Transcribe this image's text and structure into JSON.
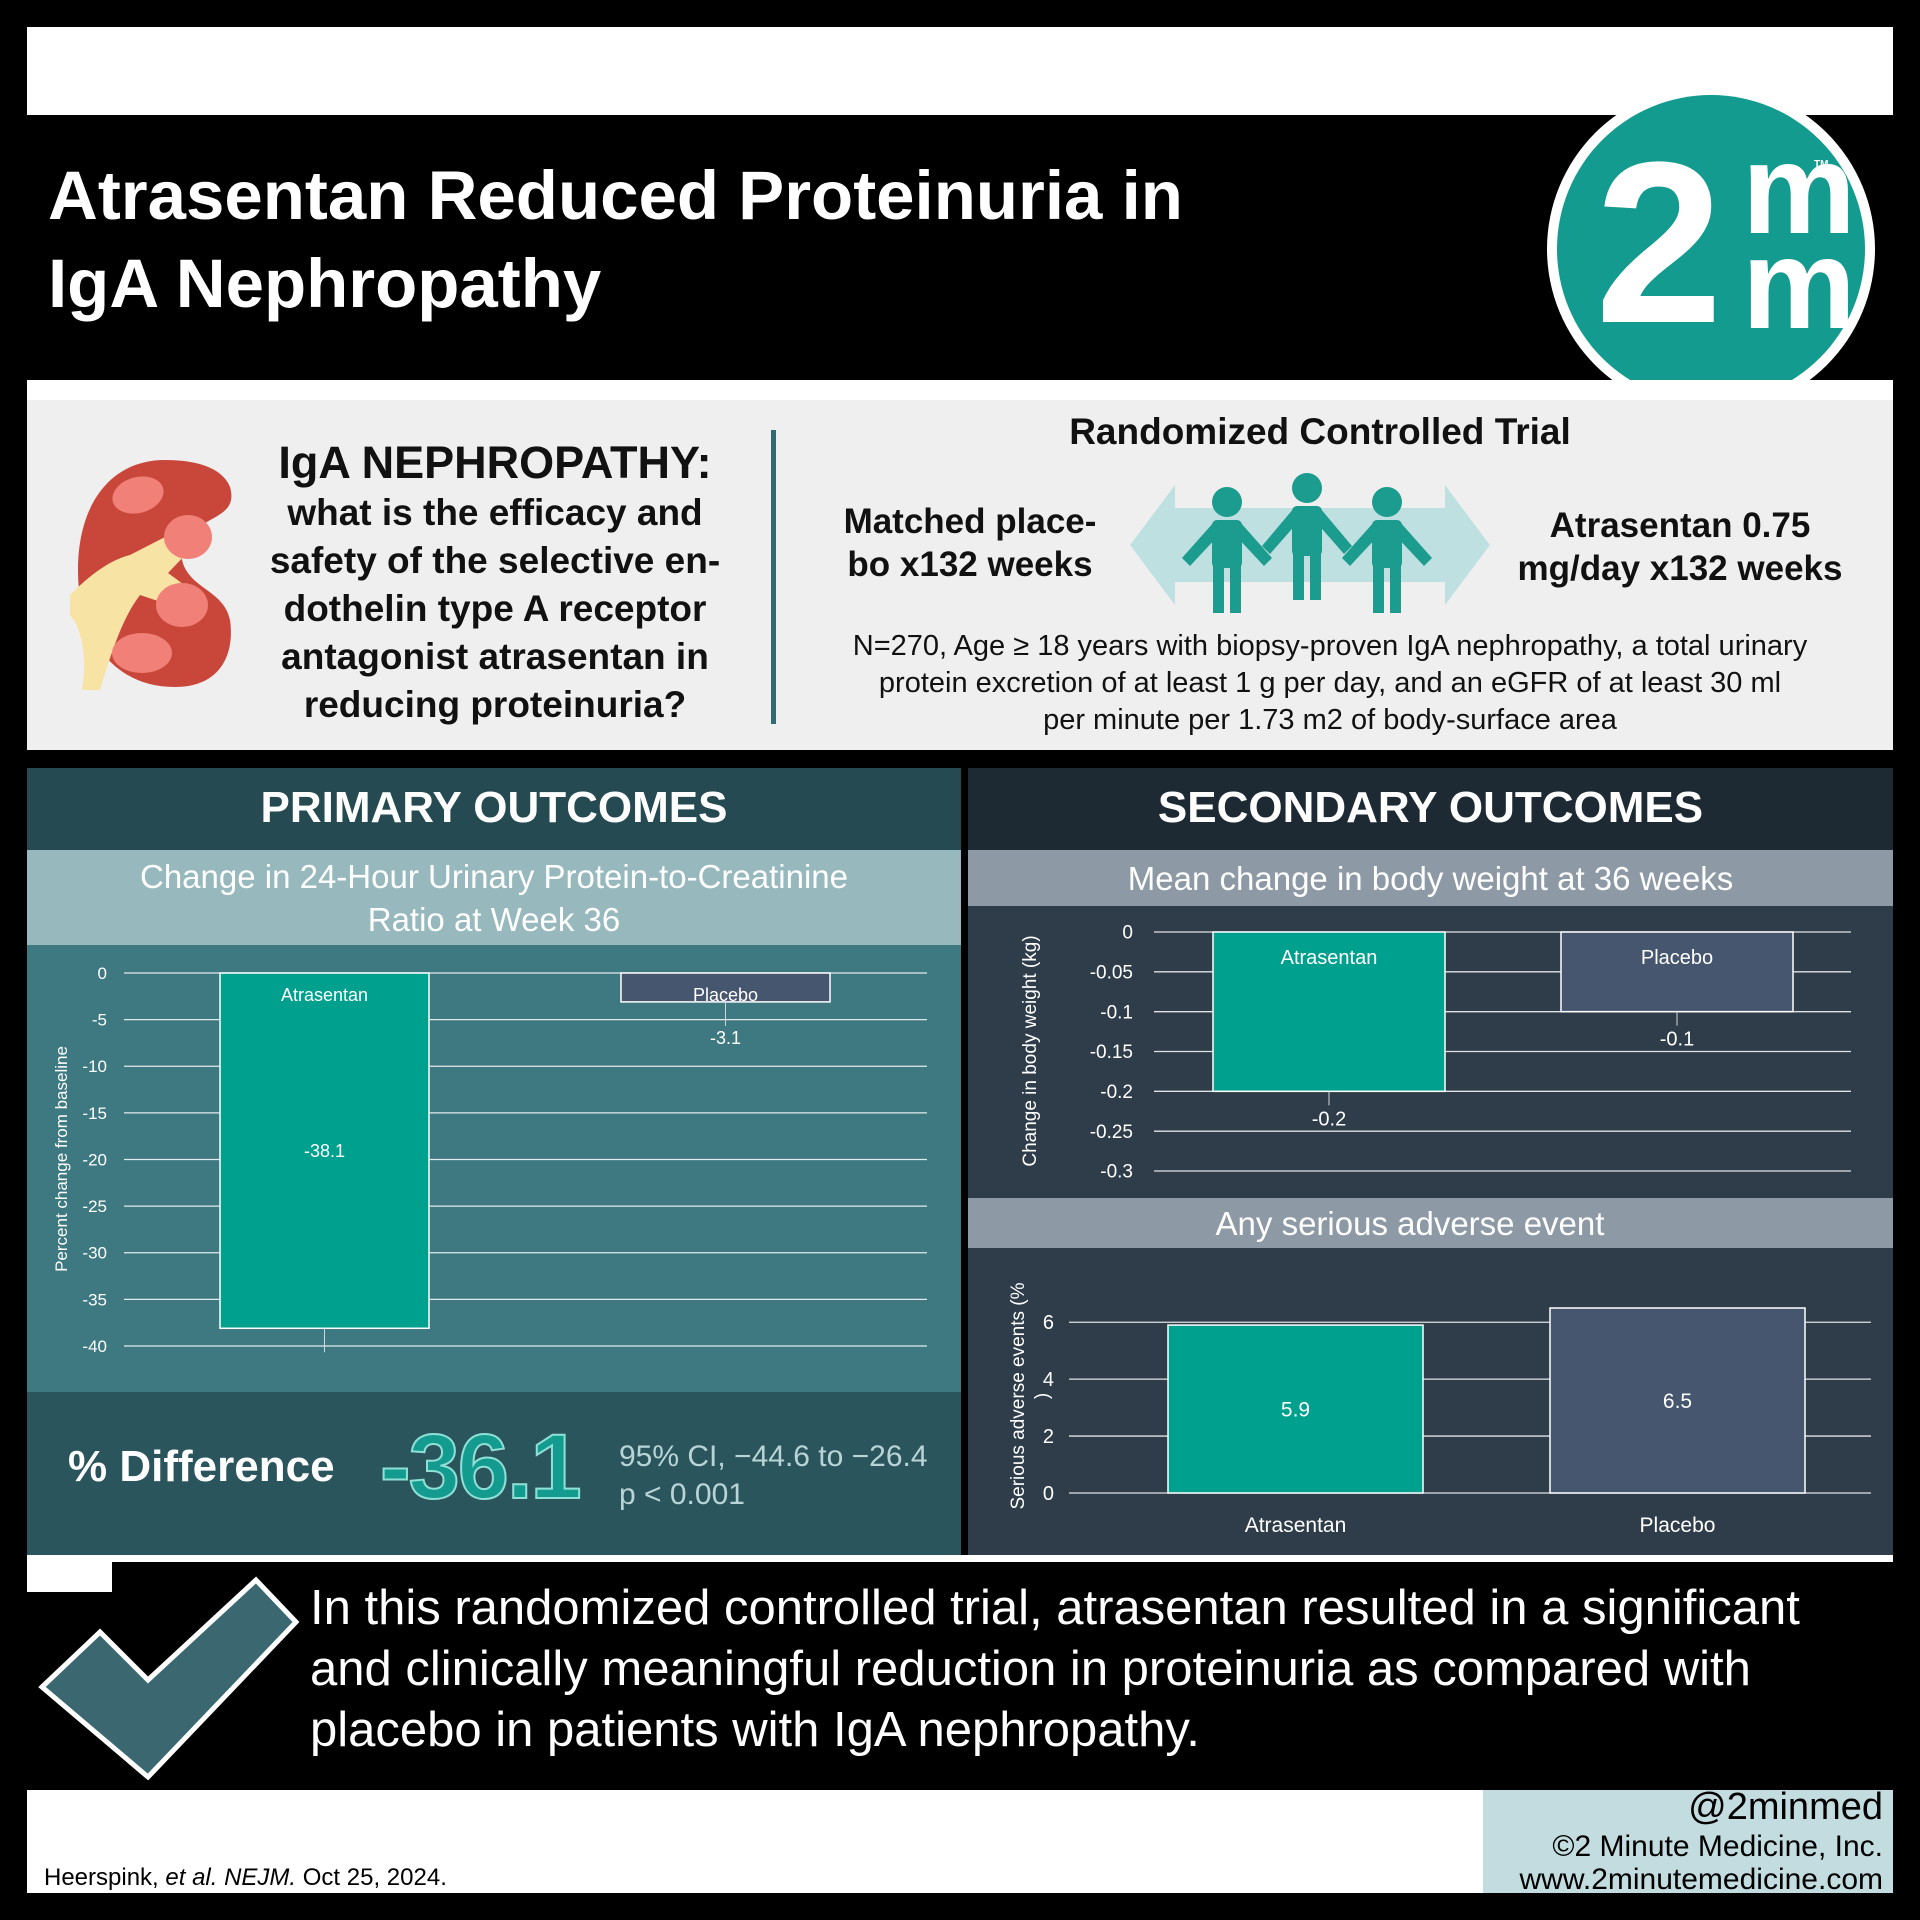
{
  "header": {
    "title_line1": "Atrasentan Reduced Proteinuria in",
    "title_line2": "IgA Nephropathy",
    "logo_two": "2",
    "logo_m": "m",
    "logo_tm": "TM"
  },
  "study": {
    "question_heading": "IgA NEPHROPATHY:",
    "question_lines": [
      "what is the efficacy and",
      "safety of the selective en-",
      "dothelin type A receptor",
      "antagonist atrasentan in",
      "reducing proteinuria?"
    ],
    "design": "Randomized Controlled Trial",
    "arm_placebo_lines": [
      "Matched place-",
      "bo x132 weeks"
    ],
    "arm_drug_lines": [
      "Atrasentan 0.75",
      "mg/day x132 weeks"
    ],
    "population_lines": [
      "N=270, Age ≥ 18 years with biopsy-proven IgA nephropathy, a total urinary",
      "protein excretion of at least 1 g per day, and an eGFR of at least 30 ml",
      "per minute per 1.73 m2 of body-surface area"
    ]
  },
  "primary": {
    "heading": "PRIMARY OUTCOMES",
    "subtitle_lines": [
      "Change in 24-Hour Urinary Protein-to-Creatinine",
      "Ratio at Week 36"
    ],
    "difference_label": "% Difference",
    "difference_value": "-36.1",
    "ci": "95% CI, −44.6 to −26.4",
    "p_value": "p < 0.001"
  },
  "secondary": {
    "heading": "SECONDARY OUTCOMES",
    "subtitle_weight": "Mean change in body weight at 36 weeks",
    "subtitle_sae": "Any serious adverse event"
  },
  "conclusion": {
    "lines": [
      "In this randomized controlled trial, atrasentan resulted in a significant",
      "and clinically meaningful reduction in proteinuria as compared with",
      "placebo in patients with IgA nephropathy."
    ]
  },
  "footer": {
    "handle": "@2minmed",
    "copyright": "©2 Minute Medicine, Inc.",
    "website": "www.2minutemedicine.com",
    "citation_author": "Heerspink, ",
    "citation_etal": "et al.",
    "citation_journal": "NEJM.",
    "citation_date": " Oct 25, 2024."
  },
  "colors": {
    "atrasentan": "#00a08f",
    "placebo": "#46566e",
    "accent": "#149b8f"
  },
  "chart_data": [
    {
      "type": "bar",
      "title": "Change in 24-Hour Urinary Protein-to-Creatinine Ratio at Week 36",
      "categories": [
        "Atrasentan",
        "Placebo"
      ],
      "values": [
        -38.1,
        -3.1
      ],
      "data_labels": [
        "-38.1",
        "-3.1"
      ],
      "ylabel": "Percent change from baseline",
      "yticks": [
        0,
        -5,
        -10,
        -15,
        -20,
        -25,
        -30,
        -35,
        -40
      ],
      "ylim": [
        -40,
        0
      ],
      "grid": true
    },
    {
      "type": "bar",
      "title": "Mean change in body weight at 36 weeks",
      "categories": [
        "Atrasentan",
        "Placebo"
      ],
      "values": [
        -0.2,
        -0.1
      ],
      "data_labels": [
        "-0.2",
        "-0.1"
      ],
      "ylabel": "Change in body weight (kg)",
      "yticks": [
        "0",
        "-0.05",
        "-0.1",
        "-0.15",
        "-0.2",
        "-0.25",
        "-0.3"
      ],
      "ylim": [
        -0.3,
        0
      ],
      "grid": true
    },
    {
      "type": "bar",
      "title": "Any serious adverse event",
      "categories": [
        "Atrasentan",
        "Placebo"
      ],
      "values": [
        5.9,
        6.5
      ],
      "data_labels": [
        "5.9",
        "6.5"
      ],
      "ylabel": "Serious adverse events (%)",
      "yticks": [
        0,
        2,
        4,
        6
      ],
      "ylim": [
        0,
        6.5
      ],
      "grid": true
    }
  ]
}
